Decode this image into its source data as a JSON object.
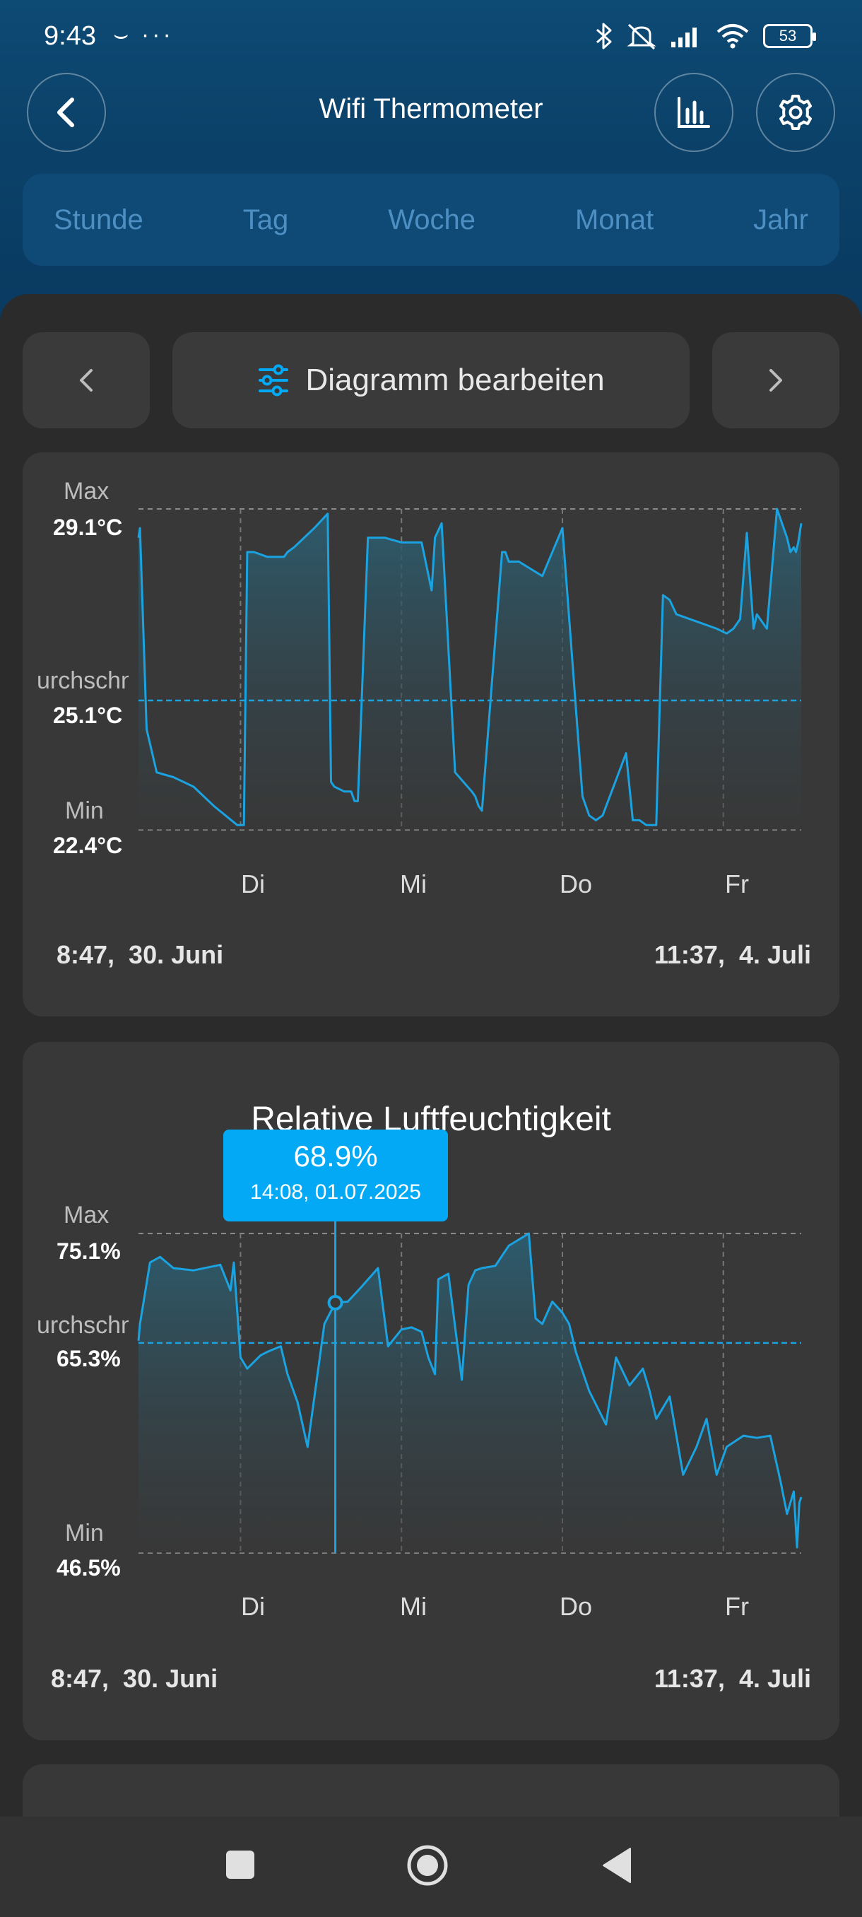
{
  "status_bar": {
    "time": "9:43",
    "battery": "53",
    "icons": [
      "smile-icon",
      "more-icon",
      "bluetooth-icon",
      "mute-icon",
      "signal-icon",
      "wifi-icon",
      "battery-icon"
    ]
  },
  "header": {
    "title": "Wifi Thermometer",
    "buttons": [
      "back-icon",
      "bar-chart-icon",
      "gear-icon"
    ]
  },
  "tabs": [
    "Stunde",
    "Tag",
    "Woche",
    "Monat",
    "Jahr"
  ],
  "toolbar": {
    "edit_label": "Diagramm bearbeiten"
  },
  "charts": [
    {
      "max_word": "Max",
      "max_value": "29.1°C",
      "avg_word": "urchschnitt",
      "avg_value": "25.1°C",
      "min_word": "Min",
      "min_value": "22.4°C",
      "days": [
        "Di",
        "Mi",
        "Do",
        "Fr"
      ],
      "start": "8:47,  30. Juni",
      "end": "11:37,  4. Juli"
    },
    {
      "title": "Relative Luftfeuchtigkeit",
      "max_word": "Max",
      "max_value": "75.1%",
      "avg_word": "urchschnitt",
      "avg_value": "65.3%",
      "min_word": "Min",
      "min_value": "46.5%",
      "days": [
        "Di",
        "Mi",
        "Do",
        "Fr"
      ],
      "start": "8:47,  30. Juni",
      "end": "11:37,  4. Juli",
      "tooltip": {
        "value": "68.9%",
        "date": "14:08,  01.07.2025"
      }
    }
  ],
  "colors": {
    "accent": "#03a9f4",
    "header_bg": "#0b4169",
    "panel_bg": "#2b2b2b",
    "card_bg": "#383838"
  },
  "chart_data": [
    {
      "type": "line",
      "title": "",
      "unit": "°C",
      "ylim": [
        22.4,
        29.1
      ],
      "average": 25.1,
      "x_ticks": [
        "Di",
        "Mi",
        "Do",
        "Fr"
      ],
      "x_start": "2025-06-30 08:47",
      "x_end": "2025-07-04 11:37",
      "series": [
        {
          "x": [
            "2025-06-30 08:47",
            "2025-06-30 09:00",
            "2025-06-30 10:00",
            "2025-06-30 11:30",
            "2025-06-30 14:00",
            "2025-06-30 17:00",
            "2025-06-30 20:00",
            "2025-06-30 23:30",
            "2025-07-01 00:30",
            "2025-07-01 01:00",
            "2025-07-01 02:00",
            "2025-07-01 04:00",
            "2025-07-01 06:30",
            "2025-07-01 07:00",
            "2025-07-01 08:00",
            "2025-07-01 11:00",
            "2025-07-01 13:00",
            "2025-07-01 13:30",
            "2025-07-01 14:00",
            "2025-07-01 15:30",
            "2025-07-01 16:30",
            "2025-07-01 17:00",
            "2025-07-01 17:30",
            "2025-07-01 19:00",
            "2025-07-01 21:30",
            "2025-07-02 00:00",
            "2025-07-02 03:00",
            "2025-07-02 04:30",
            "2025-07-02 05:00",
            "2025-07-02 06:00",
            "2025-07-02 08:00",
            "2025-07-02 10:30",
            "2025-07-02 11:00",
            "2025-07-02 11:30",
            "2025-07-02 12:00",
            "2025-07-02 15:00",
            "2025-07-02 15:30",
            "2025-07-02 16:00",
            "2025-07-02 17:30",
            "2025-07-02 21:00",
            "2025-07-03 00:00",
            "2025-07-03 03:00",
            "2025-07-03 04:00",
            "2025-07-03 05:00",
            "2025-07-03 06:00",
            "2025-07-03 09:30",
            "2025-07-03 10:30",
            "2025-07-03 11:30",
            "2025-07-03 12:30",
            "2025-07-03 14:00",
            "2025-07-03 15:00",
            "2025-07-03 16:00",
            "2025-07-03 17:00",
            "2025-07-03 21:00",
            "2025-07-03 23:00",
            "2025-07-04 00:30",
            "2025-07-04 01:30",
            "2025-07-04 02:30",
            "2025-07-04 03:30",
            "2025-07-04 04:30",
            "2025-07-04 05:00",
            "2025-07-04 06:30",
            "2025-07-04 08:00",
            "2025-07-04 09:30",
            "2025-07-04 10:00",
            "2025-07-04 10:30",
            "2025-07-04 10:50",
            "2025-07-04 11:10",
            "2025-07-04 11:37"
          ],
          "y": [
            28.5,
            28.7,
            24.5,
            23.6,
            23.5,
            23.3,
            22.9,
            22.5,
            22.5,
            28.2,
            28.2,
            28.1,
            28.1,
            28.2,
            28.3,
            28.7,
            29.0,
            23.4,
            23.3,
            23.2,
            23.2,
            23.0,
            23.0,
            28.5,
            28.5,
            28.4,
            28.4,
            27.4,
            28.5,
            28.8,
            23.6,
            23.2,
            23.1,
            22.9,
            22.8,
            28.2,
            28.2,
            28.0,
            28.0,
            27.7,
            28.7,
            23.1,
            22.7,
            22.6,
            22.7,
            24.0,
            22.6,
            22.6,
            22.5,
            22.5,
            27.3,
            27.2,
            26.9,
            26.7,
            26.6,
            26.5,
            26.6,
            26.8,
            28.6,
            26.6,
            26.9,
            26.6,
            29.1,
            28.5,
            28.2,
            28.3,
            28.2,
            28.4,
            28.8
          ]
        }
      ]
    },
    {
      "type": "line",
      "title": "Relative Luftfeuchtigkeit",
      "unit": "%",
      "ylim": [
        46.5,
        75.1
      ],
      "average": 65.3,
      "x_ticks": [
        "Di",
        "Mi",
        "Do",
        "Fr"
      ],
      "x_start": "2025-06-30 08:47",
      "x_end": "2025-07-04 11:37",
      "series": [
        {
          "x": [
            "2025-06-30 08:47",
            "2025-06-30 09:00",
            "2025-06-30 10:30",
            "2025-06-30 12:00",
            "2025-06-30 14:00",
            "2025-06-30 17:00",
            "2025-06-30 21:00",
            "2025-06-30 22:30",
            "2025-06-30 23:00",
            "2025-07-01 00:00",
            "2025-07-01 01:00",
            "2025-07-01 03:00",
            "2025-07-01 04:00",
            "2025-07-01 06:00",
            "2025-07-01 07:00",
            "2025-07-01 08:30",
            "2025-07-01 10:00",
            "2025-07-01 12:30",
            "2025-07-01 14:08",
            "2025-07-01 16:00",
            "2025-07-01 18:00",
            "2025-07-01 20:30",
            "2025-07-01 22:00",
            "2025-07-02 00:00",
            "2025-07-02 01:30",
            "2025-07-02 03:00",
            "2025-07-02 04:00",
            "2025-07-02 05:00",
            "2025-07-02 05:30",
            "2025-07-02 07:00",
            "2025-07-02 09:00",
            "2025-07-02 10:00",
            "2025-07-02 11:00",
            "2025-07-02 12:00",
            "2025-07-02 14:00",
            "2025-07-02 16:00",
            "2025-07-02 19:00",
            "2025-07-02 20:00",
            "2025-07-02 21:00",
            "2025-07-02 22:30",
            "2025-07-03 00:00",
            "2025-07-03 01:00",
            "2025-07-03 02:00",
            "2025-07-03 04:00",
            "2025-07-03 06:30",
            "2025-07-03 08:00",
            "2025-07-03 10:00",
            "2025-07-03 12:00",
            "2025-07-03 13:00",
            "2025-07-03 14:00",
            "2025-07-03 16:00",
            "2025-07-03 18:00",
            "2025-07-03 20:00",
            "2025-07-03 21:30",
            "2025-07-03 23:00",
            "2025-07-04 00:30",
            "2025-07-04 03:00",
            "2025-07-04 05:00",
            "2025-07-04 07:00",
            "2025-07-04 08:30",
            "2025-07-04 09:30",
            "2025-07-04 10:30",
            "2025-07-04 11:00",
            "2025-07-04 11:20",
            "2025-07-04 11:37"
          ],
          "y": [
            65.5,
            67.0,
            72.5,
            73.0,
            72.0,
            71.8,
            72.3,
            70.0,
            72.5,
            64.0,
            63.0,
            64.2,
            64.5,
            65.0,
            62.5,
            60.0,
            56.0,
            67.0,
            68.9,
            69.0,
            70.3,
            72.0,
            65.0,
            66.5,
            66.7,
            66.3,
            64.0,
            62.5,
            71.0,
            71.5,
            62.0,
            70.5,
            71.8,
            72.0,
            72.2,
            74.0,
            75.1,
            67.5,
            67.0,
            69.0,
            68.0,
            67.0,
            64.5,
            61.0,
            58.0,
            64.0,
            61.5,
            63.0,
            61.0,
            58.5,
            60.5,
            53.5,
            56.0,
            58.5,
            53.5,
            56.0,
            57.0,
            56.8,
            57.0,
            53.0,
            50.0,
            52.0,
            47.0,
            51.0,
            51.5
          ]
        }
      ]
    }
  ]
}
